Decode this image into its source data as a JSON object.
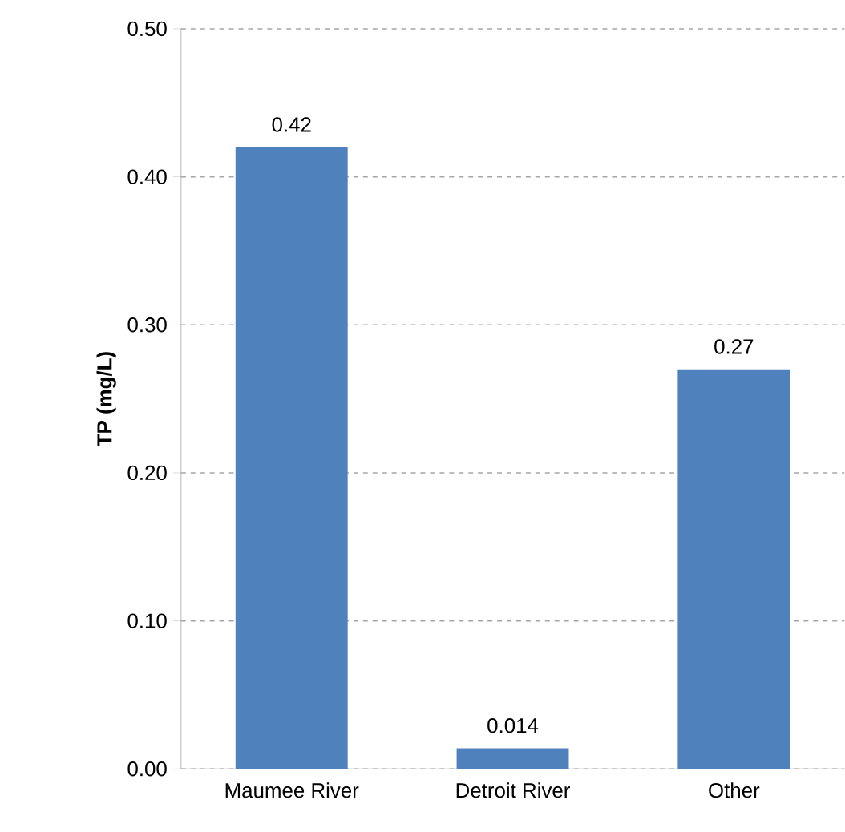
{
  "chart_data": {
    "type": "bar",
    "ylabel": "TP (mg/L)",
    "categories": [
      "Maumee River",
      "Detroit River",
      "Other"
    ],
    "values": [
      0.42,
      0.014,
      0.27
    ],
    "color": "#4f81bd",
    "ylim": [
      0,
      0.5
    ],
    "yticks": [
      {
        "value": 0,
        "label": "0.00"
      },
      {
        "value": 0.1,
        "label": "0.10"
      },
      {
        "value": 0.2,
        "label": "0.20"
      },
      {
        "value": 0.3,
        "label": "0.30"
      },
      {
        "value": 0.4,
        "label": "0.40"
      },
      {
        "value": 0.5,
        "label": "0.50"
      }
    ],
    "grid": "y",
    "data_labels": true
  }
}
